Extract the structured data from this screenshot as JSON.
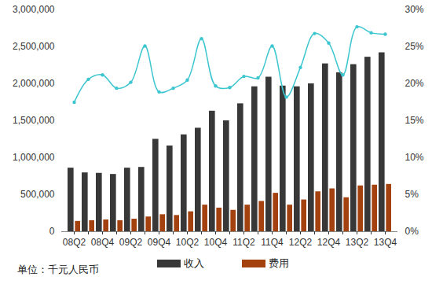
{
  "chart_data": {
    "type": "bar",
    "caption": "单位：千元人民币",
    "categories": [
      "08Q2",
      null,
      "08Q4",
      null,
      "09Q2",
      null,
      "09Q4",
      null,
      "10Q2",
      null,
      "10Q4",
      null,
      "11Q2",
      null,
      "11Q4",
      null,
      "12Q2",
      null,
      "12Q4",
      null,
      "13Q2",
      null,
      "13Q4"
    ],
    "series": [
      {
        "name": "收入",
        "type": "bar",
        "color": "#383838",
        "values": [
          860000,
          796000,
          790000,
          775000,
          860000,
          870000,
          1250000,
          1160000,
          1310000,
          1400000,
          1630000,
          1500000,
          1730000,
          1960000,
          2090000,
          1970000,
          1960000,
          2000000,
          2270000,
          2150000,
          2260000,
          2360000,
          2420000
        ]
      },
      {
        "name": "费用",
        "type": "bar",
        "color": "#a3420f",
        "values": [
          140000,
          150000,
          160000,
          150000,
          170000,
          200000,
          230000,
          220000,
          270000,
          360000,
          320000,
          290000,
          360000,
          410000,
          520000,
          360000,
          430000,
          540000,
          580000,
          460000,
          620000,
          630000,
          640000
        ]
      },
      {
        "type": "line",
        "axis": "y2",
        "color": "#3cc6cf",
        "marker": "circle",
        "values": [
          17.5,
          20.6,
          21.2,
          19.4,
          20.2,
          25.1,
          18.9,
          19.4,
          20.5,
          26.1,
          19.7,
          19.5,
          21.0,
          20.8,
          25.1,
          18.2,
          22.2,
          26.8,
          25.5,
          21.2,
          27.7,
          26.9,
          26.7
        ]
      }
    ],
    "ylim": [
      0,
      3000000
    ],
    "yticks": [
      0,
      {
        "value": 500000,
        "label": "500,000"
      },
      {
        "value": 1000000,
        "label": "1,000,000"
      },
      {
        "value": 1500000,
        "label": "1,500,000"
      },
      {
        "value": 2000000,
        "label": "2,000,000"
      },
      {
        "value": 2500000,
        "label": "2,500,000"
      },
      {
        "value": 3000000,
        "label": "3,000,000"
      }
    ],
    "y2lim": [
      0,
      30
    ],
    "y2ticks": [
      {
        "value": 0,
        "label": "0%"
      },
      {
        "value": 5,
        "label": "5%"
      },
      {
        "value": 10,
        "label": "10%"
      },
      {
        "value": 15,
        "label": "15%"
      },
      {
        "value": 20,
        "label": "20%"
      },
      {
        "value": 25,
        "label": "25%"
      },
      {
        "value": 30,
        "label": "30%"
      }
    ],
    "grid": false,
    "legend": "bottom"
  }
}
